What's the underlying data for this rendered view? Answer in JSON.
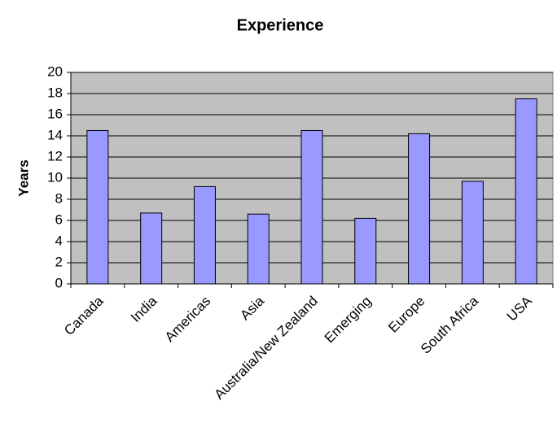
{
  "chart_data": {
    "type": "bar",
    "title": "Experience",
    "y_label": "Years",
    "categories": [
      "Canada",
      "India",
      "Americas",
      "Asia",
      "Australia/New Zealand",
      "Emerging",
      "Europe",
      "South Africa",
      "USA"
    ],
    "values": [
      14.5,
      6.7,
      9.2,
      6.6,
      14.5,
      6.2,
      14.2,
      9.7,
      17.5
    ],
    "color": "#9999ff",
    "plot_background": "#c0c0c0",
    "ylim": [
      0,
      20
    ],
    "yticks": [
      0,
      2,
      4,
      6,
      8,
      10,
      12,
      14,
      16,
      18,
      20
    ],
    "grid": true
  }
}
